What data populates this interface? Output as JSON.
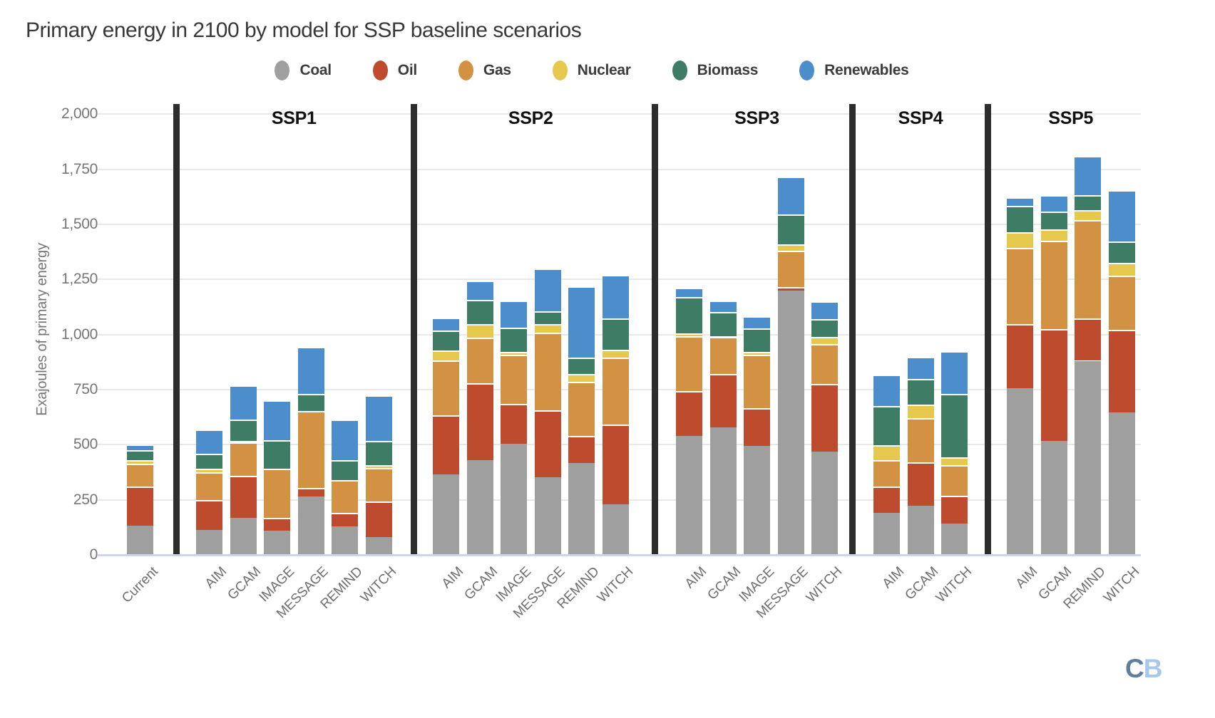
{
  "header": {
    "title": "Primary energy in 2100 by model for SSP baseline scenarios"
  },
  "logo": {
    "c": "C",
    "b": "B",
    "c_color": "#617e9d",
    "b_color": "#a9c8e8"
  },
  "chart_data": {
    "type": "bar",
    "stacked": true,
    "title": "Primary energy in 2100 by model for SSP baseline scenarios",
    "xlabel": "",
    "ylabel": "Exajoules of primary energy",
    "unit": "EJ",
    "ylim": [
      0,
      2000
    ],
    "grid": true,
    "legend_position": "top",
    "yticks": [
      {
        "v": 0,
        "label": "0"
      },
      {
        "v": 250,
        "label": "250"
      },
      {
        "v": 500,
        "label": "500"
      },
      {
        "v": 750,
        "label": "750"
      },
      {
        "v": 1000,
        "label": "1,000"
      },
      {
        "v": 1250,
        "label": "1,250"
      },
      {
        "v": 1500,
        "label": "1,500"
      },
      {
        "v": 1750,
        "label": "1,750"
      },
      {
        "v": 2000,
        "label": "2,000"
      }
    ],
    "series_order": [
      "Coal",
      "Oil",
      "Gas",
      "Nuclear",
      "Biomass",
      "Renewables"
    ],
    "colors": {
      "Coal": "#9f9f9f",
      "Oil": "#bf4b2f",
      "Gas": "#d39144",
      "Nuclear": "#e6c84e",
      "Biomass": "#3e7c66",
      "Renewables": "#4c8ecb"
    },
    "groups": [
      {
        "name": "",
        "bars": [
          {
            "label": "Current",
            "values": {
              "Coal": 132,
              "Oil": 178,
              "Gas": 104,
              "Nuclear": 16,
              "Biomass": 46,
              "Renewables": 24
            }
          }
        ]
      },
      {
        "name": "SSP1",
        "bars": [
          {
            "label": "AIM",
            "values": {
              "Coal": 113,
              "Oil": 137,
              "Gas": 124,
              "Nuclear": 16,
              "Biomass": 68,
              "Renewables": 112
            }
          },
          {
            "label": "GCAM",
            "values": {
              "Coal": 169,
              "Oil": 189,
              "Gas": 152,
              "Nuclear": 8,
              "Biomass": 97,
              "Renewables": 156
            }
          },
          {
            "label": "IMAGE",
            "values": {
              "Coal": 110,
              "Oil": 57,
              "Gas": 223,
              "Nuclear": 0,
              "Biomass": 130,
              "Renewables": 180
            }
          },
          {
            "label": "MESSAGE",
            "values": {
              "Coal": 266,
              "Oil": 38,
              "Gas": 350,
              "Nuclear": 0,
              "Biomass": 76,
              "Renewables": 215
            }
          },
          {
            "label": "REMIND",
            "values": {
              "Coal": 128,
              "Oil": 62,
              "Gas": 148,
              "Nuclear": 0,
              "Biomass": 91,
              "Renewables": 184
            }
          },
          {
            "label": "WITCH",
            "values": {
              "Coal": 81,
              "Oil": 162,
              "Gas": 151,
              "Nuclear": 13,
              "Biomass": 111,
              "Renewables": 207
            }
          }
        ]
      },
      {
        "name": "SSP2",
        "bars": [
          {
            "label": "AIM",
            "values": {
              "Coal": 364,
              "Oil": 270,
              "Gas": 250,
              "Nuclear": 43,
              "Biomass": 90,
              "Renewables": 60
            }
          },
          {
            "label": "GCAM",
            "values": {
              "Coal": 431,
              "Oil": 348,
              "Gas": 208,
              "Nuclear": 61,
              "Biomass": 110,
              "Renewables": 86
            }
          },
          {
            "label": "IMAGE",
            "values": {
              "Coal": 504,
              "Oil": 181,
              "Gas": 223,
              "Nuclear": 14,
              "Biomass": 110,
              "Renewables": 121
            }
          },
          {
            "label": "MESSAGE",
            "values": {
              "Coal": 351,
              "Oil": 304,
              "Gas": 354,
              "Nuclear": 37,
              "Biomass": 60,
              "Renewables": 194
            }
          },
          {
            "label": "REMIND",
            "values": {
              "Coal": 418,
              "Oil": 122,
              "Gas": 246,
              "Nuclear": 35,
              "Biomass": 76,
              "Renewables": 322
            }
          },
          {
            "label": "WITCH",
            "values": {
              "Coal": 231,
              "Oil": 360,
              "Gas": 304,
              "Nuclear": 37,
              "Biomass": 142,
              "Renewables": 195
            }
          }
        ]
      },
      {
        "name": "SSP3",
        "bars": [
          {
            "label": "AIM",
            "values": {
              "Coal": 539,
              "Oil": 205,
              "Gas": 248,
              "Nuclear": 15,
              "Biomass": 164,
              "Renewables": 41
            }
          },
          {
            "label": "GCAM",
            "values": {
              "Coal": 580,
              "Oil": 242,
              "Gas": 166,
              "Nuclear": 6,
              "Biomass": 107,
              "Renewables": 54
            }
          },
          {
            "label": "IMAGE",
            "values": {
              "Coal": 495,
              "Oil": 171,
              "Gas": 243,
              "Nuclear": 14,
              "Biomass": 104,
              "Renewables": 57
            }
          },
          {
            "label": "MESSAGE",
            "values": {
              "Coal": 1201,
              "Oil": 16,
              "Gas": 162,
              "Nuclear": 32,
              "Biomass": 133,
              "Renewables": 173
            }
          },
          {
            "label": "WITCH",
            "values": {
              "Coal": 469,
              "Oil": 306,
              "Gas": 183,
              "Nuclear": 32,
              "Biomass": 79,
              "Renewables": 83
            }
          }
        ]
      },
      {
        "name": "SSP4",
        "bars": [
          {
            "label": "AIM",
            "values": {
              "Coal": 191,
              "Oil": 119,
              "Gas": 119,
              "Nuclear": 68,
              "Biomass": 180,
              "Renewables": 140
            }
          },
          {
            "label": "GCAM",
            "values": {
              "Coal": 223,
              "Oil": 196,
              "Gas": 203,
              "Nuclear": 59,
              "Biomass": 119,
              "Renewables": 99
            }
          },
          {
            "label": "WITCH",
            "values": {
              "Coal": 142,
              "Oil": 126,
              "Gas": 140,
              "Nuclear": 36,
              "Biomass": 286,
              "Renewables": 196
            }
          }
        ]
      },
      {
        "name": "SSP5",
        "bars": [
          {
            "label": "AIM",
            "values": {
              "Coal": 755,
              "Oil": 293,
              "Gas": 347,
              "Nuclear": 68,
              "Biomass": 121,
              "Renewables": 38
            }
          },
          {
            "label": "GCAM",
            "values": {
              "Coal": 516,
              "Oil": 510,
              "Gas": 399,
              "Nuclear": 54,
              "Biomass": 78,
              "Renewables": 75
            }
          },
          {
            "label": "REMIND",
            "values": {
              "Coal": 881,
              "Oil": 192,
              "Gas": 447,
              "Nuclear": 46,
              "Biomass": 67,
              "Renewables": 179
            }
          },
          {
            "label": "WITCH",
            "values": {
              "Coal": 646,
              "Oil": 377,
              "Gas": 245,
              "Nuclear": 56,
              "Biomass": 97,
              "Renewables": 235
            }
          }
        ]
      }
    ]
  }
}
